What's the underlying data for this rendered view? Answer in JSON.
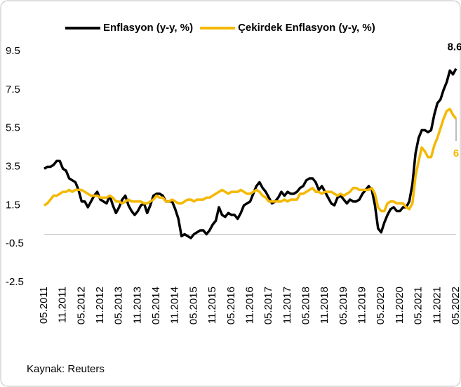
{
  "chart_data": {
    "type": "line",
    "source": "Kaynak: Reuters",
    "categories": [
      "05.2011",
      null,
      null,
      null,
      null,
      null,
      "11.2011",
      null,
      null,
      null,
      null,
      null,
      "05.2012",
      null,
      null,
      null,
      null,
      null,
      "11.2012",
      null,
      null,
      null,
      null,
      null,
      "05.2013",
      null,
      null,
      null,
      null,
      null,
      "11.2013",
      null,
      null,
      null,
      null,
      null,
      "05.2014",
      null,
      null,
      null,
      null,
      null,
      "11.2014",
      null,
      null,
      null,
      null,
      null,
      "05.2015",
      null,
      null,
      null,
      null,
      null,
      "11.2015",
      null,
      null,
      null,
      null,
      null,
      "05.2016",
      null,
      null,
      null,
      null,
      null,
      "11.2016",
      null,
      null,
      null,
      null,
      null,
      "05.2017",
      null,
      null,
      null,
      null,
      null,
      "11.2017",
      null,
      null,
      null,
      null,
      null,
      "05.2018",
      null,
      null,
      null,
      null,
      null,
      "11.2018",
      null,
      null,
      null,
      null,
      null,
      "05.2019",
      null,
      null,
      null,
      null,
      null,
      "11.2019",
      null,
      null,
      null,
      null,
      null,
      "05.2020",
      null,
      null,
      null,
      null,
      null,
      "11.2020",
      null,
      null,
      null,
      null,
      null,
      "05.2021",
      null,
      null,
      null,
      null,
      null,
      "11.2021",
      null,
      null,
      null,
      null,
      null,
      "05.2022"
    ],
    "series": [
      {
        "name": "Enflasyon (y-y, %)",
        "color": "#000000",
        "values": [
          3.4,
          3.5,
          3.5,
          3.6,
          3.8,
          3.8,
          3.4,
          3.3,
          2.9,
          2.8,
          2.7,
          2.3,
          1.7,
          1.7,
          1.4,
          1.7,
          2.0,
          2.2,
          1.8,
          1.7,
          1.6,
          2.0,
          1.5,
          1.1,
          1.4,
          1.8,
          2.0,
          1.5,
          1.2,
          1.0,
          1.2,
          1.5,
          1.6,
          1.1,
          1.5,
          2.0,
          2.1,
          2.1,
          2.0,
          1.7,
          1.7,
          1.7,
          1.3,
          0.8,
          -0.1,
          0.0,
          -0.1,
          -0.2,
          0.0,
          0.1,
          0.2,
          0.2,
          0.0,
          0.2,
          0.5,
          0.7,
          1.4,
          1.0,
          0.9,
          1.1,
          1.0,
          1.0,
          0.8,
          1.1,
          1.5,
          1.6,
          1.7,
          2.1,
          2.5,
          2.7,
          2.4,
          2.2,
          1.9,
          1.6,
          1.7,
          1.9,
          2.2,
          2.0,
          2.2,
          2.1,
          2.1,
          2.2,
          2.4,
          2.5,
          2.8,
          2.9,
          2.9,
          2.7,
          2.3,
          2.5,
          2.2,
          1.9,
          1.6,
          1.5,
          1.9,
          2.0,
          1.8,
          1.6,
          1.8,
          1.7,
          1.7,
          1.8,
          2.1,
          2.3,
          2.5,
          2.3,
          1.5,
          0.3,
          0.1,
          0.6,
          1.0,
          1.3,
          1.4,
          1.2,
          1.2,
          1.4,
          1.4,
          1.7,
          2.6,
          4.2,
          5.0,
          5.4,
          5.4,
          5.3,
          5.4,
          6.2,
          6.8,
          7.0,
          7.5,
          7.9,
          8.5,
          8.3,
          8.6
        ]
      },
      {
        "name": "Çekirdek Enflasyon (y-y, %)",
        "color": "#f5b800",
        "values": [
          1.5,
          1.6,
          1.8,
          2.0,
          2.0,
          2.1,
          2.2,
          2.2,
          2.3,
          2.2,
          2.3,
          2.3,
          2.3,
          2.2,
          2.1,
          2.0,
          2.0,
          2.0,
          1.9,
          1.9,
          1.9,
          2.0,
          1.9,
          1.7,
          1.7,
          1.6,
          1.7,
          1.8,
          1.7,
          1.7,
          1.7,
          1.7,
          1.6,
          1.6,
          1.7,
          1.8,
          2.0,
          1.9,
          1.9,
          1.7,
          1.7,
          1.8,
          1.7,
          1.6,
          1.6,
          1.7,
          1.8,
          1.8,
          1.7,
          1.8,
          1.8,
          1.8,
          1.9,
          1.9,
          2.0,
          2.1,
          2.2,
          2.3,
          2.2,
          2.1,
          2.2,
          2.2,
          2.2,
          2.3,
          2.2,
          2.1,
          2.1,
          2.2,
          2.3,
          2.2,
          2.0,
          1.9,
          1.7,
          1.7,
          1.7,
          1.7,
          1.7,
          1.8,
          1.7,
          1.8,
          1.8,
          1.8,
          2.1,
          2.1,
          2.2,
          2.3,
          2.4,
          2.2,
          2.2,
          2.1,
          2.2,
          2.2,
          2.2,
          2.1,
          2.0,
          2.1,
          2.0,
          2.1,
          2.2,
          2.4,
          2.4,
          2.3,
          2.3,
          2.3,
          2.3,
          2.4,
          2.1,
          1.4,
          1.2,
          1.2,
          1.6,
          1.7,
          1.7,
          1.6,
          1.6,
          1.6,
          1.4,
          1.3,
          1.6,
          3.0,
          3.8,
          4.5,
          4.3,
          4.0,
          4.0,
          4.6,
          5.0,
          5.5,
          6.0,
          6.4,
          6.5,
          6.2,
          6.0
        ]
      }
    ],
    "ylim": [
      -2.5,
      9.5
    ],
    "yticks": [
      -2.5,
      -0.5,
      1.5,
      3.5,
      5.5,
      7.5,
      9.5
    ],
    "grid": false,
    "legend": "top"
  }
}
